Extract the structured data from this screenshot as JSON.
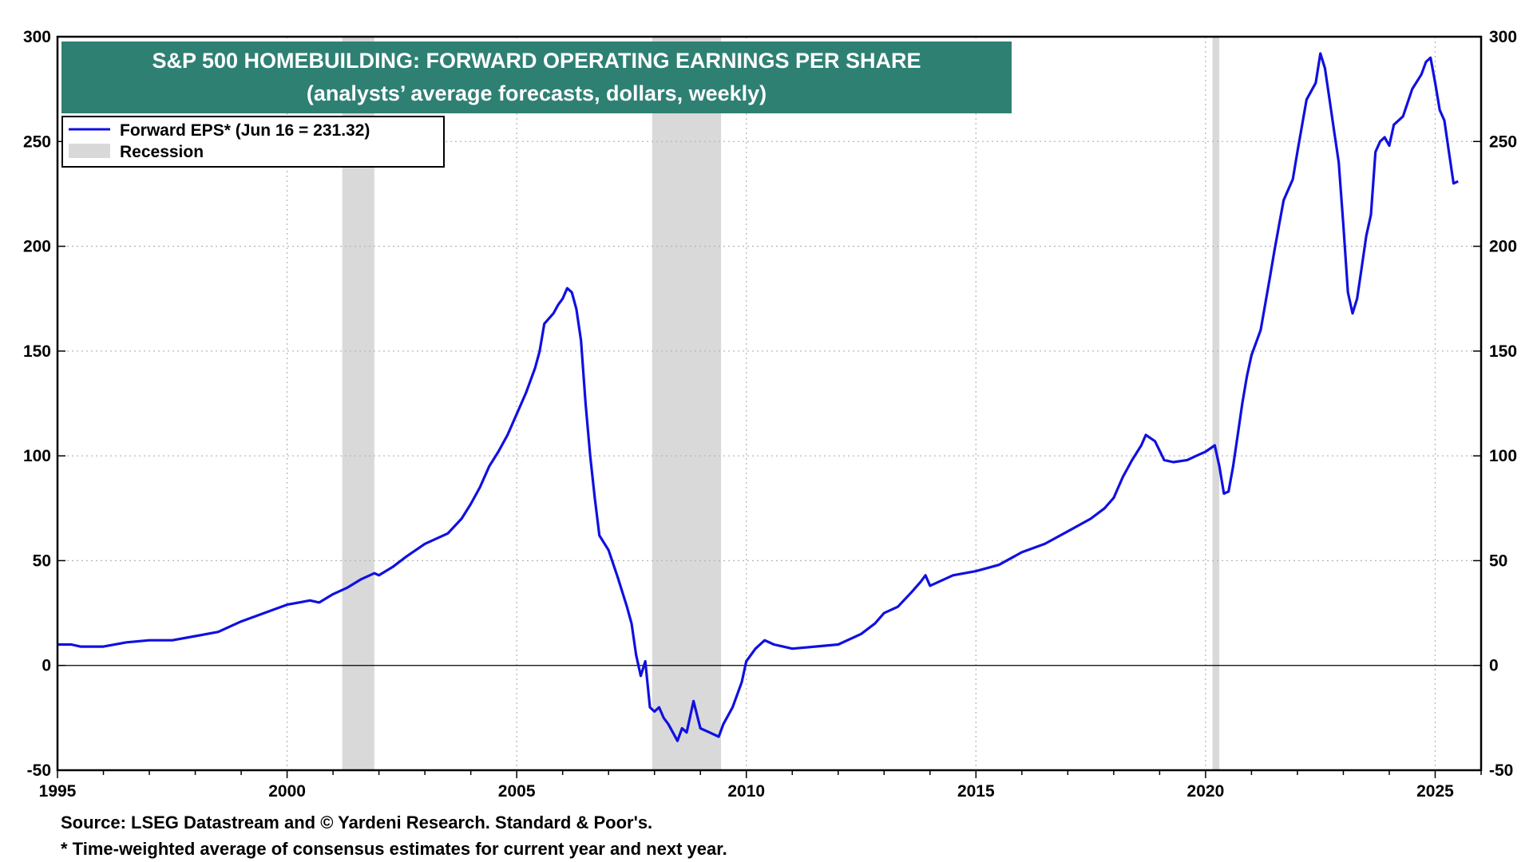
{
  "chart_data": {
    "type": "line",
    "title": "S&P 500 HOMEBUILDING: FORWARD OPERATING EARNINGS PER SHARE",
    "subtitle": "(analysts’ average forecasts, dollars, weekly)",
    "xlabel": "",
    "ylabel": "",
    "xlim": [
      1995,
      2026
    ],
    "ylim": [
      -50,
      300
    ],
    "x_ticks": [
      1995,
      2000,
      2005,
      2010,
      2015,
      2020,
      2025
    ],
    "y_ticks": [
      -50,
      0,
      50,
      100,
      150,
      200,
      250,
      300
    ],
    "grid": true,
    "legend_position": "top-left",
    "title_box_color": "#2e8073",
    "line_color": "#1010e0",
    "recession_color": "#d9d9d9",
    "legend": [
      {
        "label": "Forward EPS* (Jun 16 = 231.32)",
        "type": "line"
      },
      {
        "label": "Recession",
        "type": "band"
      }
    ],
    "recessions": [
      [
        2001.2,
        2001.9
      ],
      [
        2007.95,
        2009.45
      ],
      [
        2020.15,
        2020.3
      ]
    ],
    "series": [
      {
        "name": "Forward EPS*",
        "points": [
          [
            1995.0,
            10
          ],
          [
            1995.3,
            10
          ],
          [
            1995.5,
            9
          ],
          [
            1996.0,
            9
          ],
          [
            1996.5,
            11
          ],
          [
            1997.0,
            12
          ],
          [
            1997.5,
            12
          ],
          [
            1998.0,
            14
          ],
          [
            1998.5,
            16
          ],
          [
            1999.0,
            21
          ],
          [
            1999.5,
            25
          ],
          [
            2000.0,
            29
          ],
          [
            2000.5,
            31
          ],
          [
            2000.7,
            30
          ],
          [
            2001.0,
            34
          ],
          [
            2001.3,
            37
          ],
          [
            2001.6,
            41
          ],
          [
            2001.9,
            44
          ],
          [
            2002.0,
            43
          ],
          [
            2002.3,
            47
          ],
          [
            2002.6,
            52
          ],
          [
            2003.0,
            58
          ],
          [
            2003.5,
            63
          ],
          [
            2003.8,
            70
          ],
          [
            2004.0,
            77
          ],
          [
            2004.2,
            85
          ],
          [
            2004.4,
            95
          ],
          [
            2004.6,
            102
          ],
          [
            2004.8,
            110
          ],
          [
            2005.0,
            120
          ],
          [
            2005.2,
            130
          ],
          [
            2005.4,
            142
          ],
          [
            2005.5,
            150
          ],
          [
            2005.6,
            163
          ],
          [
            2005.8,
            168
          ],
          [
            2005.9,
            172
          ],
          [
            2006.0,
            175
          ],
          [
            2006.1,
            180
          ],
          [
            2006.2,
            178
          ],
          [
            2006.3,
            170
          ],
          [
            2006.4,
            155
          ],
          [
            2006.5,
            125
          ],
          [
            2006.6,
            100
          ],
          [
            2006.7,
            80
          ],
          [
            2006.8,
            62
          ],
          [
            2007.0,
            55
          ],
          [
            2007.2,
            42
          ],
          [
            2007.4,
            28
          ],
          [
            2007.5,
            20
          ],
          [
            2007.6,
            5
          ],
          [
            2007.7,
            -5
          ],
          [
            2007.8,
            2
          ],
          [
            2007.9,
            -20
          ],
          [
            2008.0,
            -22
          ],
          [
            2008.1,
            -20
          ],
          [
            2008.2,
            -25
          ],
          [
            2008.3,
            -28
          ],
          [
            2008.5,
            -36
          ],
          [
            2008.6,
            -30
          ],
          [
            2008.7,
            -32
          ],
          [
            2008.85,
            -17
          ],
          [
            2009.0,
            -30
          ],
          [
            2009.2,
            -32
          ],
          [
            2009.4,
            -34
          ],
          [
            2009.5,
            -28
          ],
          [
            2009.7,
            -20
          ],
          [
            2009.9,
            -8
          ],
          [
            2010.0,
            2
          ],
          [
            2010.2,
            8
          ],
          [
            2010.4,
            12
          ],
          [
            2010.6,
            10
          ],
          [
            2010.8,
            9
          ],
          [
            2011.0,
            8
          ],
          [
            2011.5,
            9
          ],
          [
            2012.0,
            10
          ],
          [
            2012.5,
            15
          ],
          [
            2012.8,
            20
          ],
          [
            2013.0,
            25
          ],
          [
            2013.3,
            28
          ],
          [
            2013.6,
            35
          ],
          [
            2013.8,
            40
          ],
          [
            2013.9,
            43
          ],
          [
            2014.0,
            38
          ],
          [
            2014.5,
            43
          ],
          [
            2015.0,
            45
          ],
          [
            2015.5,
            48
          ],
          [
            2016.0,
            54
          ],
          [
            2016.5,
            58
          ],
          [
            2017.0,
            64
          ],
          [
            2017.5,
            70
          ],
          [
            2017.8,
            75
          ],
          [
            2018.0,
            80
          ],
          [
            2018.2,
            90
          ],
          [
            2018.4,
            98
          ],
          [
            2018.6,
            105
          ],
          [
            2018.7,
            110
          ],
          [
            2018.9,
            107
          ],
          [
            2019.1,
            98
          ],
          [
            2019.3,
            97
          ],
          [
            2019.6,
            98
          ],
          [
            2019.8,
            100
          ],
          [
            2020.0,
            102
          ],
          [
            2020.2,
            105
          ],
          [
            2020.3,
            95
          ],
          [
            2020.4,
            82
          ],
          [
            2020.5,
            83
          ],
          [
            2020.6,
            95
          ],
          [
            2020.7,
            110
          ],
          [
            2020.8,
            125
          ],
          [
            2020.9,
            138
          ],
          [
            2021.0,
            148
          ],
          [
            2021.2,
            160
          ],
          [
            2021.4,
            185
          ],
          [
            2021.5,
            198
          ],
          [
            2021.6,
            210
          ],
          [
            2021.7,
            222
          ],
          [
            2021.9,
            232
          ],
          [
            2022.0,
            245
          ],
          [
            2022.2,
            270
          ],
          [
            2022.4,
            278
          ],
          [
            2022.5,
            292
          ],
          [
            2022.6,
            285
          ],
          [
            2022.7,
            270
          ],
          [
            2022.8,
            255
          ],
          [
            2022.9,
            240
          ],
          [
            2023.0,
            210
          ],
          [
            2023.1,
            178
          ],
          [
            2023.2,
            168
          ],
          [
            2023.3,
            175
          ],
          [
            2023.4,
            190
          ],
          [
            2023.5,
            205
          ],
          [
            2023.6,
            215
          ],
          [
            2023.7,
            245
          ],
          [
            2023.8,
            250
          ],
          [
            2023.9,
            252
          ],
          [
            2024.0,
            248
          ],
          [
            2024.1,
            258
          ],
          [
            2024.3,
            262
          ],
          [
            2024.5,
            275
          ],
          [
            2024.7,
            282
          ],
          [
            2024.8,
            288
          ],
          [
            2024.9,
            290
          ],
          [
            2025.0,
            278
          ],
          [
            2025.1,
            265
          ],
          [
            2025.2,
            260
          ],
          [
            2025.3,
            245
          ],
          [
            2025.4,
            230
          ],
          [
            2025.5,
            231
          ]
        ]
      }
    ]
  },
  "footnotes": {
    "source": "Source: LSEG Datastream and © Yardeni Research. Standard & Poor's.",
    "note": "* Time-weighted average of consensus estimates for current year and next year."
  }
}
